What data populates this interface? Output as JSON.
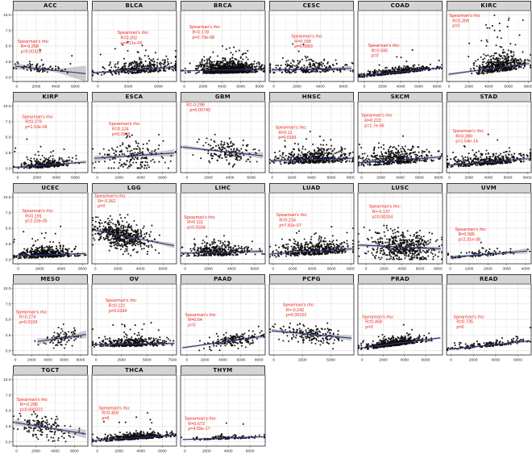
{
  "figure": {
    "y_ticks": [
      "10.0",
      "7.5",
      "5.0",
      "2.5",
      "0.0"
    ],
    "y_tick_values": [
      10,
      7.5,
      5,
      2.5,
      0
    ],
    "y_range": [
      -0.7,
      10.7
    ],
    "grid_on": true,
    "colors": {
      "strip_bg": "#d4d4d4",
      "panel_border": "#3c3c3c",
      "grid_major": "#e3e3e3",
      "grid_minor": "#f1f1f1",
      "point": "#0d0d0d",
      "trend_line": "#27357e",
      "ci_band": "#999999",
      "annotation_text": "#e8251d",
      "tick_text": "#222222"
    }
  },
  "chart_data": [
    {
      "type": "scatter",
      "title": "ACC",
      "annotation_lines": [
        "Spearman's rho:",
        "R=-0.258",
        "p=0.00318"
      ],
      "ann_pos": [
        0.06,
        0.4
      ],
      "x_ticks": [
        0,
        2000,
        4000,
        6000
      ],
      "x_range": [
        -400,
        7300
      ],
      "n_points": 80,
      "seed": 110,
      "cloud": {
        "kind": "floor",
        "xmu": 2300,
        "xsd": 1500,
        "ysd": 0.8,
        "tail": 0.03,
        "tailmax": 3.2
      },
      "trend": {
        "y0": 1.75,
        "y1": 0.55,
        "w0": 0.5,
        "w1": 1.3
      }
    },
    {
      "type": "scatter",
      "title": "BLCA",
      "annotation_lines": [
        "Spearman's rho:",
        "R=0.202",
        "p=4.11e-05"
      ],
      "ann_pos": [
        0.3,
        0.28
      ],
      "x_ticks": [
        0,
        3000,
        6000
      ],
      "x_range": [
        -600,
        7800
      ],
      "n_points": 380,
      "seed": 207,
      "cloud": {
        "kind": "floor",
        "xmu": 4300,
        "xsd": 1900,
        "ysd": 1.0,
        "tail": 0.03,
        "tailmax": 3.5
      },
      "trend": {
        "y0": 0.7,
        "y1": 1.6,
        "w0": 0.22,
        "w1": 0.3
      }
    },
    {
      "type": "scatter",
      "title": "BRCA",
      "annotation_lines": [
        "Spearman's rho:",
        "R=0.178",
        "p=2.73e-08"
      ],
      "ann_pos": [
        0.1,
        0.2
      ],
      "x_ticks": [
        0,
        2000,
        4000,
        6000,
        8000
      ],
      "x_range": [
        -400,
        8600
      ],
      "n_points": 1000,
      "seed": 304,
      "cloud": {
        "kind": "floor",
        "xmu": 4700,
        "xsd": 1600,
        "ysd": 0.9,
        "tail": 0.02,
        "tailmax": 3.0
      },
      "trend": {
        "y0": 1.0,
        "y1": 1.25,
        "w0": 0.12,
        "w1": 0.18
      }
    },
    {
      "type": "scatter",
      "title": "CESC",
      "annotation_lines": [
        "Spearman's rho:",
        "R=0.158",
        "p=0.0063"
      ],
      "ann_pos": [
        0.26,
        0.33
      ],
      "x_ticks": [
        0,
        2000,
        4000,
        6000
      ],
      "x_range": [
        -400,
        6900
      ],
      "n_points": 250,
      "seed": 401,
      "cloud": {
        "kind": "floor",
        "xmu": 3000,
        "xsd": 1600,
        "ysd": 1.0,
        "tail": 0.02,
        "tailmax": 3.0
      },
      "trend": {
        "y0": 1.15,
        "y1": 1.4,
        "w0": 0.3,
        "w1": 0.4
      }
    },
    {
      "type": "scatter",
      "title": "COAD",
      "annotation_lines": [
        "Spearman's rho:",
        "R=0.595",
        "p=0"
      ],
      "ann_pos": [
        0.12,
        0.46
      ],
      "x_ticks": [
        0,
        2000,
        4000,
        6000,
        8000
      ],
      "x_range": [
        -700,
        8600
      ],
      "n_points": 430,
      "seed": 509,
      "cloud": {
        "kind": "floor",
        "xmu": 3600,
        "xsd": 2100,
        "ysd": 0.4,
        "tail": 0.015,
        "tailmax": 2.5
      },
      "trend": {
        "y0": 0.15,
        "y1": 1.5,
        "w0": 0.1,
        "w1": 0.14
      }
    },
    {
      "type": "scatter",
      "title": "KIRC",
      "annotation_lines": [
        "Spearman's rho:",
        "R=0.399",
        "p=0"
      ],
      "ann_pos": [
        0.03,
        0.04
      ],
      "x_ticks": [
        0,
        2000,
        4000,
        6000,
        8000
      ],
      "x_range": [
        -250,
        8300
      ],
      "n_points": 520,
      "seed": 606,
      "cloud": {
        "kind": "floor",
        "xmu": 5200,
        "xsd": 1300,
        "ysd": 1.2,
        "tail": 0.07,
        "tailmax": 7.0
      },
      "trend": {
        "y0": 0.45,
        "y1": 2.2,
        "w0": 0.25,
        "w1": 0.3
      }
    },
    {
      "type": "scatter",
      "title": "KIRP",
      "annotation_lines": [
        "Spearman's rho:",
        "R=0.279",
        "p=1.53e-06"
      ],
      "ann_pos": [
        0.12,
        0.18
      ],
      "x_ticks": [
        0,
        2000,
        4000,
        6000
      ],
      "x_range": [
        -500,
        7300
      ],
      "n_points": 290,
      "seed": 703,
      "cloud": {
        "kind": "floor",
        "xmu": 2800,
        "xsd": 1400,
        "ysd": 0.75,
        "tail": 0.03,
        "tailmax": 3.0
      },
      "trend": {
        "y0": 0.15,
        "y1": 1.0,
        "w0": 0.18,
        "w1": 0.28
      }
    },
    {
      "type": "scatter",
      "title": "ESCA",
      "annotation_lines": [
        "Spearman's rho:",
        "R=0.124",
        "p=0.0945"
      ],
      "ann_pos": [
        0.2,
        0.28
      ],
      "x_ticks": [
        0,
        2000,
        4000,
        6000
      ],
      "x_range": [
        -500,
        7300
      ],
      "n_points": 180,
      "seed": 808,
      "cloud": {
        "kind": "normal",
        "xmu": 3500,
        "xsd": 1600,
        "ysd": 1.25
      },
      "trend": {
        "y0": 1.6,
        "y1": 2.45,
        "w0": 0.45,
        "w1": 0.6
      }
    },
    {
      "type": "scatter",
      "title": "GBM",
      "annotation_lines": [
        "R=-0.298",
        "p=0.00743"
      ],
      "ann_pos": [
        0.07,
        0.01
      ],
      "x_ticks": [
        0,
        2000,
        4000,
        6000
      ],
      "x_range": [
        -600,
        7300
      ],
      "n_points": 160,
      "seed": 905,
      "cloud": {
        "kind": "normal",
        "xmu": 3800,
        "xsd": 1350,
        "ysd": 1.0
      },
      "trend": {
        "y0": 3.4,
        "y1": 2.0,
        "w0": 0.35,
        "w1": 0.5
      }
    },
    {
      "type": "scatter",
      "title": "HNSC",
      "annotation_lines": [
        "Spearman's rho:",
        "R=0.11",
        "p=0.0181"
      ],
      "ann_pos": [
        0.07,
        0.33
      ],
      "x_ticks": [
        0,
        2000,
        4000,
        6000,
        8000
      ],
      "x_range": [
        -300,
        8300
      ],
      "n_points": 520,
      "seed": 1002,
      "cloud": {
        "kind": "floor",
        "xmu": 4400,
        "xsd": 1800,
        "ysd": 1.05,
        "tail": 0.02,
        "tailmax": 3.0
      },
      "trend": {
        "y0": 1.2,
        "y1": 1.6,
        "w0": 0.2,
        "w1": 0.28
      }
    },
    {
      "type": "scatter",
      "title": "SKCM",
      "annotation_lines": [
        "Spearman's rho:",
        "R=0.222",
        "p=1.7e-06"
      ],
      "ann_pos": [
        0.04,
        0.16
      ],
      "x_ticks": [
        0,
        2000,
        4000,
        6000,
        8000
      ],
      "x_range": [
        -400,
        8400
      ],
      "n_points": 450,
      "seed": 1109,
      "cloud": {
        "kind": "floor",
        "xmu": 3400,
        "xsd": 1800,
        "ysd": 1.1,
        "tail": 0.02,
        "tailmax": 3.5
      },
      "trend": {
        "y0": 0.9,
        "y1": 1.8,
        "w0": 0.22,
        "w1": 0.3
      }
    },
    {
      "type": "scatter",
      "title": "STAD",
      "annotation_lines": [
        "Spearman's rho:",
        "R=0.390",
        "p=1.54e-14"
      ],
      "ann_pos": [
        0.07,
        0.38
      ],
      "x_ticks": [
        0,
        2000,
        4000,
        6000,
        8000
      ],
      "x_range": [
        -300,
        8400
      ],
      "n_points": 410,
      "seed": 1206,
      "cloud": {
        "kind": "floor",
        "xmu": 4000,
        "xsd": 2000,
        "ysd": 0.8,
        "tail": 0.02,
        "tailmax": 3.0
      },
      "trend": {
        "y0": 0.5,
        "y1": 1.55,
        "w0": 0.18,
        "w1": 0.25
      }
    },
    {
      "type": "scatter",
      "title": "UCEC",
      "annotation_lines": [
        "Spearman's rho:",
        "R=0.191",
        "p=2.22e-05"
      ],
      "ann_pos": [
        0.12,
        0.22
      ],
      "x_ticks": [
        0,
        2000,
        4000,
        6000
      ],
      "x_range": [
        -500,
        6500
      ],
      "n_points": 540,
      "seed": 1303,
      "cloud": {
        "kind": "floor",
        "xmu": 2400,
        "xsd": 1300,
        "ysd": 0.75,
        "tail": 0.02,
        "tailmax": 3.0
      },
      "trend": {
        "y0": 0.55,
        "y1": 0.95,
        "w0": 0.15,
        "w1": 0.22
      }
    },
    {
      "type": "scatter",
      "title": "LGG",
      "annotation_lines": [
        "Spearman's rho:",
        "R=-0.362",
        "p=0"
      ],
      "ann_pos": [
        0.03,
        0.01
      ],
      "x_ticks": [
        0,
        2000,
        4000,
        6000
      ],
      "x_range": [
        -300,
        7200
      ],
      "n_points": 520,
      "seed": 1400,
      "cloud": {
        "kind": "normal",
        "xmu": 2300,
        "xsd": 1250,
        "ysd": 1.05
      },
      "trend": {
        "y0": 4.7,
        "y1": 2.2,
        "w0": 0.18,
        "w1": 0.4
      }
    },
    {
      "type": "scatter",
      "title": "LIHC",
      "annotation_lines": [
        "Spearman's rho:",
        "R=0.111",
        "p=0.0334"
      ],
      "ann_pos": [
        0.04,
        0.31
      ],
      "x_ticks": [
        0,
        2000,
        4000,
        6000
      ],
      "x_range": [
        -400,
        6900
      ],
      "n_points": 370,
      "seed": 1507,
      "cloud": {
        "kind": "floor",
        "xmu": 2800,
        "xsd": 1400,
        "ysd": 0.95,
        "tail": 0.02,
        "tailmax": 3.0
      },
      "trend": {
        "y0": 1.0,
        "y1": 1.3,
        "w0": 0.22,
        "w1": 0.32
      }
    },
    {
      "type": "scatter",
      "title": "LUAD",
      "annotation_lines": [
        "Spearman's rho:",
        "R=0.216",
        "p=7.81e-07"
      ],
      "ann_pos": [
        0.08,
        0.28
      ],
      "x_ticks": [
        0,
        2000,
        4000,
        6000,
        8000
      ],
      "x_range": [
        -400,
        8300
      ],
      "n_points": 500,
      "seed": 1604,
      "cloud": {
        "kind": "floor",
        "xmu": 4300,
        "xsd": 1800,
        "ysd": 1.05,
        "tail": 0.02,
        "tailmax": 3.5
      },
      "trend": {
        "y0": 0.9,
        "y1": 1.7,
        "w0": 0.2,
        "w1": 0.28
      }
    },
    {
      "type": "scatter",
      "title": "LUSC",
      "annotation_lines": [
        "Spearman's rho:",
        "R=-0.137",
        "p=0.00204"
      ],
      "ann_pos": [
        0.13,
        0.16
      ],
      "x_ticks": [
        0,
        2000,
        4000,
        6000,
        8000
      ],
      "x_range": [
        -900,
        8500
      ],
      "n_points": 490,
      "seed": 1701,
      "cloud": {
        "kind": "normal",
        "xmu": 4000,
        "xsd": 1900,
        "ysd": 1.2
      },
      "trend": {
        "y0": 2.3,
        "y1": 1.7,
        "w0": 0.25,
        "w1": 0.35
      }
    },
    {
      "type": "scatter",
      "title": "UVM",
      "annotation_lines": [
        "Spearman's rho:",
        "R=0.585",
        "p=2.31e-08"
      ],
      "ann_pos": [
        0.1,
        0.48
      ],
      "x_ticks": [
        0,
        1000,
        2000,
        3000,
        4000
      ],
      "x_range": [
        -200,
        4300
      ],
      "n_points": 80,
      "seed": 1808,
      "cloud": {
        "kind": "floor",
        "xmu": 1800,
        "xsd": 950,
        "ysd": 0.5,
        "tail": 0.02,
        "tailmax": 3.0
      },
      "trend": {
        "y0": 0.35,
        "y1": 1.35,
        "w0": 0.3,
        "w1": 0.45
      }
    },
    {
      "type": "scatter",
      "title": "MESO",
      "annotation_lines": [
        "Spearman's rho:",
        "R=0.274",
        "p=0.0109"
      ],
      "ann_pos": [
        0.04,
        0.36
      ],
      "x_ticks": [
        0,
        2000,
        4000,
        6000,
        8000
      ],
      "x_range": [
        -300,
        8900
      ],
      "n_points": 85,
      "seed": 1905,
      "cloud": {
        "kind": "normal",
        "xmu": 5600,
        "xsd": 1300,
        "ysd": 0.7
      },
      "trend": {
        "y0": 1.45,
        "y1": 2.6,
        "w0": 0.5,
        "w1": 0.65,
        "tx": [
          2700,
          8700
        ]
      }
    },
    {
      "type": "scatter",
      "title": "OV",
      "annotation_lines": [
        "Spearman's rho:",
        "R=0.121",
        "p=0.0184"
      ],
      "ann_pos": [
        0.16,
        0.2
      ],
      "x_ticks": [
        0,
        2500,
        5000,
        7500
      ],
      "x_range": [
        -400,
        7900
      ],
      "n_points": 400,
      "seed": 2002,
      "cloud": {
        "kind": "floor",
        "xmu": 3300,
        "xsd": 1700,
        "ysd": 0.65,
        "tail": 0.02,
        "tailmax": 3.0
      },
      "trend": {
        "y0": 0.95,
        "y1": 1.15,
        "w0": 0.15,
        "w1": 0.22
      }
    },
    {
      "type": "scatter",
      "title": "PAAD",
      "annotation_lines": [
        "Spearman's rho:",
        "R=0.64",
        "p=0"
      ],
      "ann_pos": [
        0.05,
        0.4
      ],
      "x_ticks": [
        0,
        2000,
        4000,
        6000,
        8000
      ],
      "x_range": [
        -700,
        8700
      ],
      "n_points": 180,
      "seed": 2109,
      "cloud": {
        "kind": "normal",
        "xmu": 5200,
        "xsd": 1600,
        "ysd": 0.55
      },
      "trend": {
        "y0": 0.45,
        "y1": 2.3,
        "w0": 0.2,
        "w1": 0.28
      }
    },
    {
      "type": "scatter",
      "title": "PCPG",
      "annotation_lines": [
        "Spearman's rho:",
        "R=-0.242",
        "p=0.00102"
      ],
      "ann_pos": [
        0.16,
        0.26
      ],
      "x_ticks": [
        0,
        2500,
        5000
      ],
      "x_range": [
        -400,
        7000
      ],
      "n_points": 180,
      "seed": 2206,
      "cloud": {
        "kind": "normal",
        "xmu": 3200,
        "xsd": 1300,
        "ysd": 0.75
      },
      "trend": {
        "y0": 3.2,
        "y1": 2.0,
        "w0": 0.3,
        "w1": 0.45
      }
    },
    {
      "type": "scatter",
      "title": "PRAD",
      "annotation_lines": [
        "Spearman's rho:",
        "R=0.468",
        "p=0"
      ],
      "ann_pos": [
        0.05,
        0.43
      ],
      "x_ticks": [
        0,
        2000,
        4000,
        6000
      ],
      "x_range": [
        -400,
        7600
      ],
      "n_points": 500,
      "seed": 2303,
      "cloud": {
        "kind": "floor",
        "xmu": 3000,
        "xsd": 1400,
        "ysd": 0.6,
        "tail": 0.01,
        "tailmax": 2.5
      },
      "trend": {
        "y0": 0.4,
        "y1": 2.05,
        "w0": 0.12,
        "w1": 0.18
      }
    },
    {
      "type": "scatter",
      "title": "READ",
      "annotation_lines": [
        "Spearman's rho:",
        "R=0.735",
        "p=0"
      ],
      "ann_pos": [
        0.08,
        0.43
      ],
      "x_ticks": [
        0,
        2000,
        4000,
        6000
      ],
      "x_range": [
        -400,
        7200
      ],
      "n_points": 160,
      "seed": 2400,
      "cloud": {
        "kind": "floor",
        "xmu": 3500,
        "xsd": 1800,
        "ysd": 0.45,
        "tail": 0.02,
        "tailmax": 2.0
      },
      "trend": {
        "y0": 0.2,
        "y1": 1.55,
        "w0": 0.15,
        "w1": 0.22
      }
    },
    {
      "type": "scatter",
      "title": "TGCT",
      "annotation_lines": [
        "Spearman's rho:",
        "R=-0.286",
        "p=0.000322"
      ],
      "ann_pos": [
        0.05,
        0.31
      ],
      "x_ticks": [
        0,
        2000,
        4000,
        6000
      ],
      "x_range": [
        -400,
        7400
      ],
      "n_points": 150,
      "seed": 2507,
      "cloud": {
        "kind": "normal",
        "xmu": 2700,
        "xsd": 1500,
        "ysd": 0.95
      },
      "trend": {
        "y0": 3.1,
        "y1": 1.25,
        "w0": 0.45,
        "w1": 0.7
      }
    },
    {
      "type": "scatter",
      "title": "THCA",
      "annotation_lines": [
        "Spearman's rho:",
        "R=0.459",
        "p=0"
      ],
      "ann_pos": [
        0.08,
        0.43
      ],
      "x_ticks": [
        0,
        2000,
        4000,
        6000
      ],
      "x_range": [
        -500,
        7300
      ],
      "n_points": 500,
      "seed": 2604,
      "cloud": {
        "kind": "floor",
        "xmu": 3500,
        "xsd": 1600,
        "ysd": 0.45,
        "tail": 0.02,
        "tailmax": 3.0
      },
      "trend": {
        "y0": 0.2,
        "y1": 1.05,
        "w0": 0.1,
        "w1": 0.15
      }
    },
    {
      "type": "scatter",
      "title": "THYM",
      "annotation_lines": [
        "Spearman's rho:",
        "R=0.673",
        "p=4.59e-17"
      ],
      "ann_pos": [
        0.05,
        0.58
      ],
      "x_ticks": [
        0,
        2000,
        4000,
        6000
      ],
      "x_range": [
        -400,
        7400
      ],
      "n_points": 120,
      "seed": 2701,
      "cloud": {
        "kind": "floor",
        "xmu": 3500,
        "xsd": 1500,
        "ysd": 0.3,
        "tail": 0.04,
        "tailmax": 1.8
      },
      "trend": {
        "y0": 0.35,
        "y1": 0.8,
        "w0": 0.12,
        "w1": 0.18
      }
    }
  ]
}
